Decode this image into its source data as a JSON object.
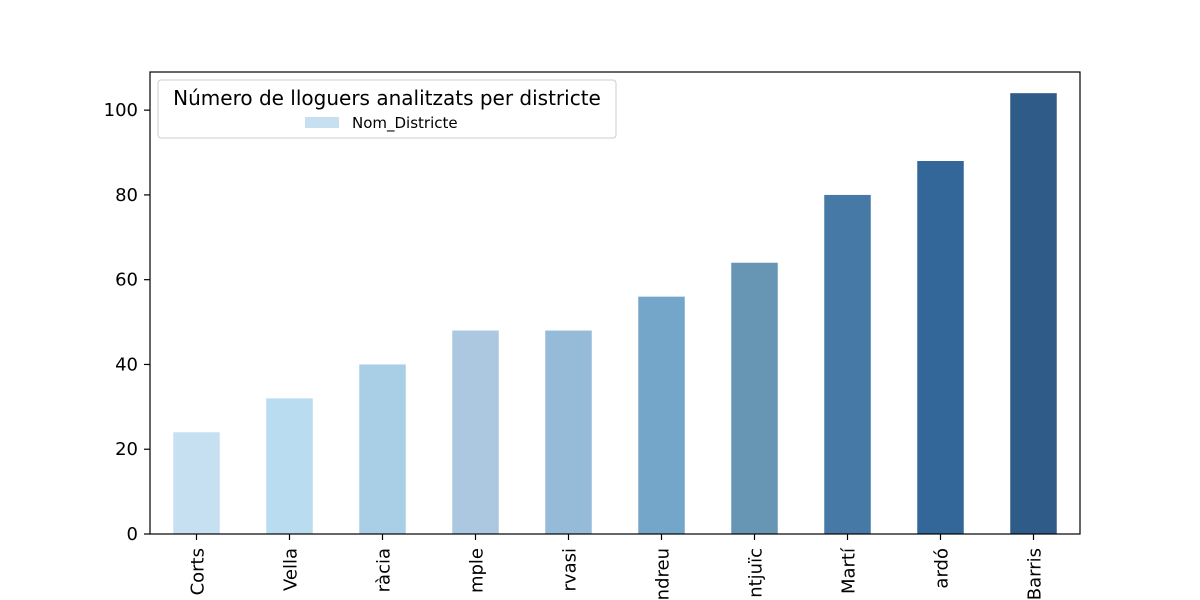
{
  "chart_data": {
    "type": "bar",
    "categories": [
      "Corts",
      "Vella",
      "ràcia",
      "mple",
      "rvasi",
      "ndreu",
      "ntjuïc",
      "Martí",
      "ardó",
      "Barris"
    ],
    "values": [
      24,
      32,
      40,
      48,
      48,
      56,
      64,
      80,
      88,
      104
    ],
    "colors": [
      "#c6e0f2",
      "#badcf0",
      "#a8cfe6",
      "#abc8e0",
      "#96bbd8",
      "#74a6ca",
      "#6796b5",
      "#4779a7",
      "#336699",
      "#2e5b87"
    ],
    "ylim": [
      0,
      109
    ],
    "yticks": [
      0,
      20,
      40,
      60,
      80,
      100
    ],
    "legend": {
      "title": "Número de lloguers analitzats per districte",
      "entries": [
        {
          "label": "Nom_Districte",
          "color": "#c6e0f2"
        }
      ],
      "position": "top-left"
    },
    "grid": false
  }
}
